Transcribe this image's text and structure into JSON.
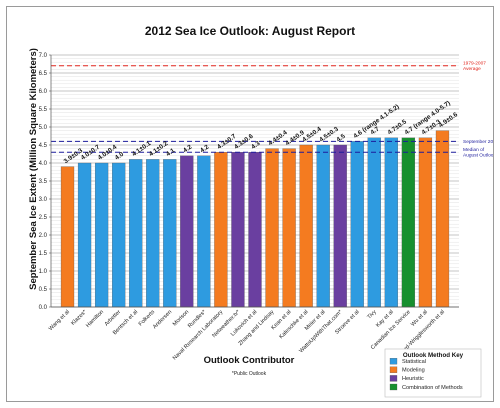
{
  "chart_data": {
    "type": "bar",
    "title": "2012 Sea Ice Outlook: August Report",
    "xlabel": "Outlook Contributor",
    "ylabel": "September Sea Ice Extent (Million Square Kilometers)",
    "ylim": [
      0,
      7
    ],
    "yticks": [
      "0.0",
      "0.5",
      "1.0",
      "1.5",
      "2.0",
      "2.5",
      "3.0",
      "3.5",
      "4.0",
      "4.5",
      "5.0",
      "5.5",
      "6.0",
      "6.5",
      "7.0"
    ],
    "grid": true,
    "categories": [
      "Wang et al",
      "Klazes*",
      "Hamilton",
      "Arbetter",
      "Bentsch et al",
      "Folkerts",
      "Andersen",
      "Morison",
      "Rundles*",
      "Naval Research Laboratory",
      "Netweather.tv*",
      "Lukovich et al",
      "Zhang and Lindsay",
      "Kean et al",
      "Kaleschke et al",
      "Meier et al",
      "WattsUpWithThat.com*",
      "Stroeve et al",
      "Tivy",
      "Kay et al",
      "Canadian Ice Service",
      "Wu et al",
      "Blanchard-Wrigglesworth et al"
    ],
    "values": [
      3.9,
      4.0,
      4.0,
      4.0,
      4.1,
      4.1,
      4.1,
      4.2,
      4.2,
      4.3,
      4.3,
      4.3,
      4.4,
      4.4,
      4.5,
      4.5,
      4.5,
      4.6,
      4.7,
      4.7,
      4.7,
      4.7,
      4.9
    ],
    "labels": [
      "3.9±0.3",
      "4.0±0.7",
      "4.0±0.4",
      "4.0",
      "4.1±0.1",
      "4.1±0.2",
      "4.1",
      "4.2",
      "4.2",
      "4.3±0.7",
      "4.3±0.6",
      "4.3",
      "4.4±0.4",
      "4.4±0.9",
      "4.5±0.4",
      "4.5±0.3",
      "4.5",
      "4.6 (range 4.1-5.2)",
      "4.7",
      "4.7±0.5",
      "4.7 (range 4.0-5.7)",
      "4.7±0.3",
      "4.9±0.6"
    ],
    "methods": [
      "Modeling",
      "Statistical",
      "Statistical",
      "Statistical",
      "Statistical",
      "Statistical",
      "Statistical",
      "Heuristic",
      "Statistical",
      "Modeling",
      "Heuristic",
      "Heuristic",
      "Modeling",
      "Modeling",
      "Modeling",
      "Statistical",
      "Heuristic",
      "Statistical",
      "Statistical",
      "Statistical",
      "Combination of Methods",
      "Modeling",
      "Modeling"
    ],
    "reference_lines": [
      {
        "value": 6.7,
        "label": "1979-2007 Average",
        "color": "#e0241b"
      },
      {
        "value": 4.6,
        "label": "September 2011",
        "color": "#1c1c9c"
      },
      {
        "value": 4.3,
        "label": "Median of August Outlooks",
        "color": "#1c1c9c"
      }
    ],
    "legend": {
      "title": "Outlook Method Key",
      "position": "bottom-right",
      "items": [
        {
          "name": "Statistical",
          "color": "#2e9be0"
        },
        {
          "name": "Modeling",
          "color": "#f47b20"
        },
        {
          "name": "Heuristic",
          "color": "#6a3fa0"
        },
        {
          "name": "Combination of Methods",
          "color": "#17902f"
        }
      ]
    },
    "footnote": "*Public Outlook"
  }
}
